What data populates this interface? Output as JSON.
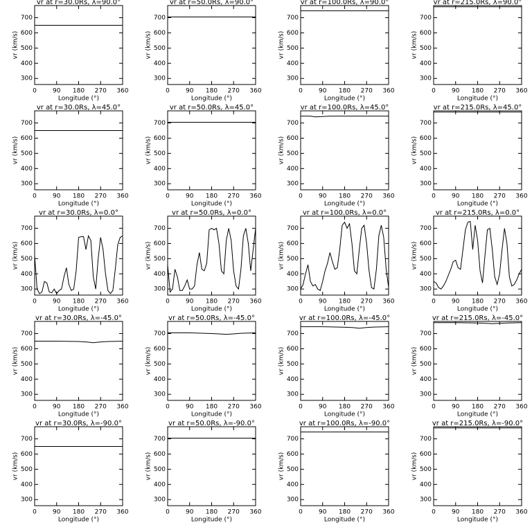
{
  "chart_data": [
    {
      "type": "line",
      "title": "vr at r=30.0Rs, λ=90.0°",
      "xlabel": "Longitude (°)",
      "ylabel": "vr (km/s)",
      "x": [
        0,
        360
      ],
      "values": [
        650,
        650
      ],
      "color": "#000000",
      "xlim": [
        0,
        360
      ],
      "ylim": [
        260,
        780
      ],
      "xticks": [
        0,
        90,
        180,
        270,
        360
      ],
      "yticks": [
        300,
        400,
        500,
        600,
        700
      ]
    },
    {
      "type": "line",
      "title": "vr at r=50.0Rs, λ=90.0°",
      "xlabel": "Longitude (°)",
      "ylabel": "vr (km/s)",
      "x": [
        0,
        360
      ],
      "values": [
        705,
        705
      ],
      "color": "#000000",
      "xlim": [
        0,
        360
      ],
      "ylim": [
        260,
        780
      ],
      "xticks": [
        0,
        90,
        180,
        270,
        360
      ],
      "yticks": [
        300,
        400,
        500,
        600,
        700
      ]
    },
    {
      "type": "line",
      "title": "vr at r=100.0Rs, λ=90.0°",
      "xlabel": "Longitude (°)",
      "ylabel": "vr (km/s)",
      "x": [
        0,
        360
      ],
      "values": [
        745,
        745
      ],
      "color": "#000000",
      "xlim": [
        0,
        360
      ],
      "ylim": [
        260,
        780
      ],
      "xticks": [
        0,
        90,
        180,
        270,
        360
      ],
      "yticks": [
        300,
        400,
        500,
        600,
        700
      ]
    },
    {
      "type": "line",
      "title": "vr at r=215.0Rs, λ=90.0°",
      "xlabel": "Longitude (°)",
      "ylabel": "vr (km/s)",
      "x": [
        0,
        360
      ],
      "values": [
        772,
        772
      ],
      "color": "#000000",
      "xlim": [
        0,
        360
      ],
      "ylim": [
        260,
        780
      ],
      "xticks": [
        0,
        90,
        180,
        270,
        360
      ],
      "yticks": [
        300,
        400,
        500,
        600,
        700
      ]
    },
    {
      "type": "line",
      "title": "vr at r=30.0Rs, λ=45.0°",
      "xlabel": "Longitude (°)",
      "ylabel": "vr (km/s)",
      "x": [
        0,
        360
      ],
      "values": [
        650,
        650
      ],
      "color": "#000000",
      "xlim": [
        0,
        360
      ],
      "ylim": [
        260,
        780
      ],
      "xticks": [
        0,
        90,
        180,
        270,
        360
      ],
      "yticks": [
        300,
        400,
        500,
        600,
        700
      ]
    },
    {
      "type": "line",
      "title": "vr at r=50.0Rs, λ=45.0°",
      "xlabel": "Longitude (°)",
      "ylabel": "vr (km/s)",
      "x": [
        0,
        360
      ],
      "values": [
        705,
        705
      ],
      "color": "#000000",
      "xlim": [
        0,
        360
      ],
      "ylim": [
        260,
        780
      ],
      "xticks": [
        0,
        90,
        180,
        270,
        360
      ],
      "yticks": [
        300,
        400,
        500,
        600,
        700
      ]
    },
    {
      "type": "line",
      "title": "vr at r=100.0Rs, λ=45.0°",
      "xlabel": "Longitude (°)",
      "ylabel": "vr (km/s)",
      "x": [
        0,
        40,
        60,
        80,
        120,
        360
      ],
      "values": [
        745,
        745,
        740,
        742,
        745,
        745
      ],
      "color": "#000000",
      "xlim": [
        0,
        360
      ],
      "ylim": [
        260,
        780
      ],
      "xticks": [
        0,
        90,
        180,
        270,
        360
      ],
      "yticks": [
        300,
        400,
        500,
        600,
        700
      ]
    },
    {
      "type": "line",
      "title": "vr at r=215.0Rs, λ=45.0°",
      "xlabel": "Longitude (°)",
      "ylabel": "vr (km/s)",
      "x": [
        0,
        360
      ],
      "values": [
        772,
        772
      ],
      "color": "#000000",
      "xlim": [
        0,
        360
      ],
      "ylim": [
        260,
        780
      ],
      "xticks": [
        0,
        90,
        180,
        270,
        360
      ],
      "yticks": [
        300,
        400,
        500,
        600,
        700
      ]
    },
    {
      "type": "line",
      "title": "vr at r=30.0Rs, λ=0.0°",
      "xlabel": "Longitude (°)",
      "ylabel": "vr (km/s)",
      "x": [
        0,
        10,
        20,
        30,
        40,
        50,
        60,
        70,
        80,
        90,
        100,
        110,
        120,
        130,
        140,
        150,
        160,
        170,
        180,
        190,
        200,
        210,
        220,
        230,
        240,
        250,
        260,
        270,
        280,
        290,
        300,
        310,
        320,
        330,
        340,
        350,
        360
      ],
      "values": [
        520,
        300,
        270,
        280,
        350,
        340,
        280,
        275,
        300,
        270,
        290,
        300,
        380,
        440,
        330,
        290,
        300,
        420,
        640,
        645,
        645,
        560,
        650,
        620,
        380,
        300,
        500,
        640,
        560,
        400,
        290,
        270,
        290,
        430,
        590,
        640,
        650
      ],
      "color": "#000000",
      "xlim": [
        0,
        360
      ],
      "ylim": [
        260,
        780
      ],
      "xticks": [
        0,
        90,
        180,
        270,
        360
      ],
      "yticks": [
        300,
        400,
        500,
        600,
        700
      ]
    },
    {
      "type": "line",
      "title": "vr at r=50.0Rs, λ=0.0°",
      "xlabel": "Longitude (°)",
      "ylabel": "vr (km/s)",
      "x": [
        0,
        10,
        20,
        30,
        40,
        50,
        60,
        70,
        80,
        90,
        100,
        110,
        120,
        130,
        140,
        150,
        160,
        170,
        180,
        190,
        200,
        210,
        220,
        230,
        240,
        250,
        260,
        270,
        280,
        290,
        300,
        310,
        320,
        330,
        340,
        350,
        360
      ],
      "values": [
        460,
        280,
        300,
        430,
        380,
        290,
        290,
        320,
        360,
        300,
        300,
        320,
        460,
        540,
        430,
        420,
        470,
        690,
        700,
        690,
        700,
        600,
        420,
        400,
        620,
        700,
        620,
        420,
        320,
        300,
        430,
        650,
        700,
        600,
        420,
        560,
        700
      ],
      "color": "#000000",
      "xlim": [
        0,
        360
      ],
      "ylim": [
        260,
        780
      ],
      "xticks": [
        0,
        90,
        180,
        270,
        360
      ],
      "yticks": [
        300,
        400,
        500,
        600,
        700
      ]
    },
    {
      "type": "line",
      "title": "vr at r=100.0Rs, λ=0.0°",
      "xlabel": "Longitude (°)",
      "ylabel": "vr (km/s)",
      "x": [
        0,
        10,
        20,
        30,
        40,
        50,
        60,
        70,
        80,
        90,
        100,
        110,
        120,
        130,
        140,
        150,
        160,
        170,
        180,
        190,
        200,
        210,
        220,
        230,
        240,
        250,
        260,
        270,
        280,
        290,
        300,
        310,
        320,
        330,
        340,
        350,
        360
      ],
      "values": [
        300,
        330,
        400,
        460,
        350,
        320,
        330,
        300,
        290,
        350,
        420,
        470,
        540,
        480,
        430,
        440,
        560,
        720,
        740,
        700,
        730,
        600,
        420,
        400,
        560,
        700,
        720,
        600,
        420,
        310,
        300,
        430,
        650,
        720,
        640,
        430,
        310
      ],
      "color": "#000000",
      "xlim": [
        0,
        360
      ],
      "ylim": [
        260,
        780
      ],
      "xticks": [
        0,
        90,
        180,
        270,
        360
      ],
      "yticks": [
        300,
        400,
        500,
        600,
        700
      ]
    },
    {
      "type": "line",
      "title": "vr at r=215.0Rs, λ=0.0°",
      "xlabel": "Longitude (°)",
      "ylabel": "vr (km/s)",
      "x": [
        0,
        10,
        20,
        30,
        40,
        50,
        60,
        70,
        80,
        90,
        100,
        110,
        120,
        130,
        140,
        150,
        160,
        170,
        180,
        190,
        200,
        210,
        220,
        230,
        240,
        250,
        260,
        270,
        280,
        290,
        300,
        310,
        320,
        330,
        340,
        350,
        360
      ],
      "values": [
        350,
        340,
        310,
        300,
        320,
        350,
        390,
        430,
        480,
        490,
        440,
        430,
        560,
        690,
        740,
        745,
        560,
        720,
        620,
        420,
        340,
        520,
        690,
        700,
        560,
        380,
        330,
        400,
        560,
        700,
        600,
        380,
        320,
        330,
        360,
        400,
        430
      ],
      "color": "#000000",
      "xlim": [
        0,
        360
      ],
      "ylim": [
        260,
        780
      ],
      "xticks": [
        0,
        90,
        180,
        270,
        360
      ],
      "yticks": [
        300,
        400,
        500,
        600,
        700
      ]
    },
    {
      "type": "line",
      "title": "vr at r=30.0Rs, λ=-45.0°",
      "xlabel": "Longitude (°)",
      "ylabel": "vr (km/s)",
      "x": [
        0,
        90,
        180,
        210,
        240,
        270,
        300,
        360
      ],
      "values": [
        650,
        650,
        648,
        645,
        640,
        645,
        648,
        650
      ],
      "color": "#000000",
      "xlim": [
        0,
        360
      ],
      "ylim": [
        260,
        780
      ],
      "xticks": [
        0,
        90,
        180,
        270,
        360
      ],
      "yticks": [
        300,
        400,
        500,
        600,
        700
      ]
    },
    {
      "type": "line",
      "title": "vr at r=50.0Rs, λ=-45.0°",
      "xlabel": "Longitude (°)",
      "ylabel": "vr (km/s)",
      "x": [
        0,
        90,
        180,
        210,
        240,
        270,
        300,
        360
      ],
      "values": [
        705,
        705,
        700,
        698,
        695,
        698,
        702,
        705
      ],
      "color": "#000000",
      "xlim": [
        0,
        360
      ],
      "ylim": [
        260,
        780
      ],
      "xticks": [
        0,
        90,
        180,
        270,
        360
      ],
      "yticks": [
        300,
        400,
        500,
        600,
        700
      ]
    },
    {
      "type": "line",
      "title": "vr at r=100.0Rs, λ=-45.0°",
      "xlabel": "Longitude (°)",
      "ylabel": "vr (km/s)",
      "x": [
        0,
        90,
        180,
        210,
        240,
        270,
        300,
        360
      ],
      "values": [
        745,
        745,
        742,
        740,
        735,
        740,
        743,
        745
      ],
      "color": "#000000",
      "xlim": [
        0,
        360
      ],
      "ylim": [
        260,
        780
      ],
      "xticks": [
        0,
        90,
        180,
        270,
        360
      ],
      "yticks": [
        300,
        400,
        500,
        600,
        700
      ]
    },
    {
      "type": "line",
      "title": "vr at r=215.0Rs, λ=-45.0°",
      "xlabel": "Longitude (°)",
      "ylabel": "vr (km/s)",
      "x": [
        0,
        90,
        180,
        210,
        240,
        270,
        300,
        360
      ],
      "values": [
        772,
        772,
        770,
        768,
        765,
        768,
        770,
        772
      ],
      "color": "#000000",
      "xlim": [
        0,
        360
      ],
      "ylim": [
        260,
        780
      ],
      "xticks": [
        0,
        90,
        180,
        270,
        360
      ],
      "yticks": [
        300,
        400,
        500,
        600,
        700
      ]
    },
    {
      "type": "line",
      "title": "vr at r=30.0Rs, λ=-90.0°",
      "xlabel": "Longitude (°)",
      "ylabel": "vr (km/s)",
      "x": [
        0,
        360
      ],
      "values": [
        650,
        650
      ],
      "color": "#000000",
      "xlim": [
        0,
        360
      ],
      "ylim": [
        260,
        780
      ],
      "xticks": [
        0,
        90,
        180,
        270,
        360
      ],
      "yticks": [
        300,
        400,
        500,
        600,
        700
      ]
    },
    {
      "type": "line",
      "title": "vr at r=50.0Rs, λ=-90.0°",
      "xlabel": "Longitude (°)",
      "ylabel": "vr (km/s)",
      "x": [
        0,
        360
      ],
      "values": [
        705,
        705
      ],
      "color": "#000000",
      "xlim": [
        0,
        360
      ],
      "ylim": [
        260,
        780
      ],
      "xticks": [
        0,
        90,
        180,
        270,
        360
      ],
      "yticks": [
        300,
        400,
        500,
        600,
        700
      ]
    },
    {
      "type": "line",
      "title": "vr at r=100.0Rs, λ=-90.0°",
      "xlabel": "Longitude (°)",
      "ylabel": "vr (km/s)",
      "x": [
        0,
        360
      ],
      "values": [
        745,
        745
      ],
      "color": "#000000",
      "xlim": [
        0,
        360
      ],
      "ylim": [
        260,
        780
      ],
      "xticks": [
        0,
        90,
        180,
        270,
        360
      ],
      "yticks": [
        300,
        400,
        500,
        600,
        700
      ]
    },
    {
      "type": "line",
      "title": "vr at r=215.0Rs, λ=-90.0°",
      "xlabel": "Longitude (°)",
      "ylabel": "vr (km/s)",
      "x": [
        0,
        360
      ],
      "values": [
        772,
        772
      ],
      "color": "#000000",
      "xlim": [
        0,
        360
      ],
      "ylim": [
        260,
        780
      ],
      "xticks": [
        0,
        90,
        180,
        270,
        360
      ],
      "yticks": [
        300,
        400,
        500,
        600,
        700
      ]
    }
  ]
}
